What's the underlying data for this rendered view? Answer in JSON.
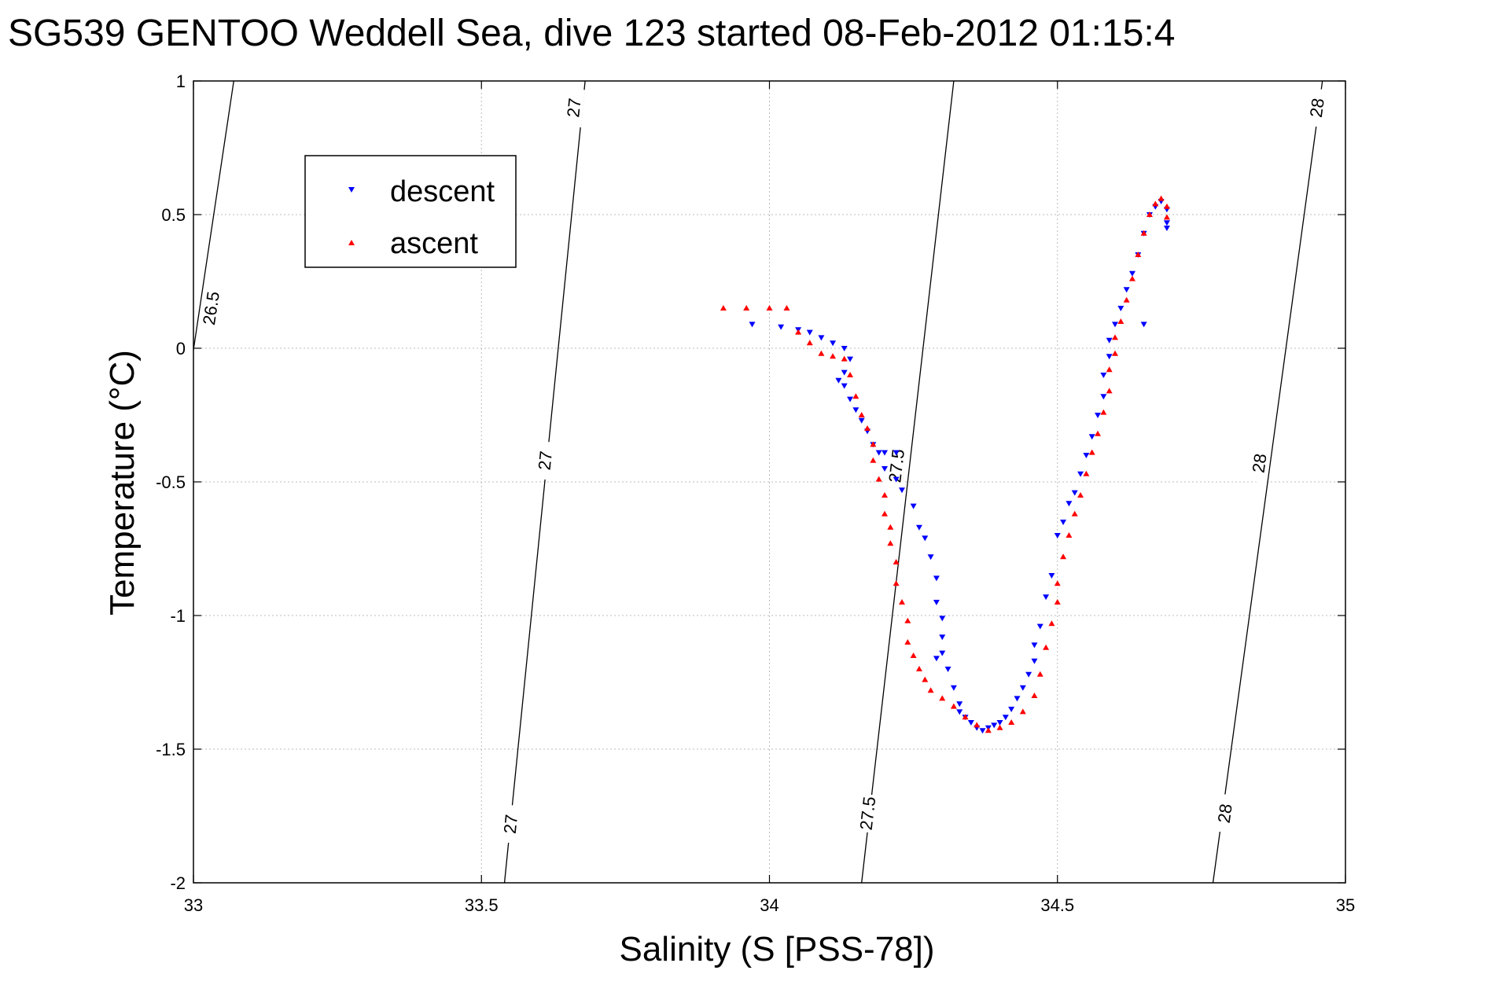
{
  "chart_data": {
    "type": "scatter",
    "title": "SG539 GENTOO Weddell Sea, dive 123 started 08-Feb-2012 01:15:4",
    "xlabel": "Salinity (S [PSS-78])",
    "ylabel": "Temperature (°C)",
    "xlim": [
      33,
      35
    ],
    "ylim": [
      -2,
      1
    ],
    "xticks": [
      33,
      33.5,
      34,
      34.5,
      35
    ],
    "xtick_labels": [
      "33",
      "33.5",
      "34",
      "34.5",
      "35"
    ],
    "yticks": [
      -2,
      -1.5,
      -1,
      -0.5,
      0,
      0.5,
      1
    ],
    "ytick_labels": [
      "-2",
      "-1.5",
      "-1",
      "-0.5",
      "0",
      "0.5",
      "1"
    ],
    "grid": true,
    "legend": {
      "placement": "top-left",
      "entries": [
        "descent",
        "ascent"
      ]
    },
    "colors": {
      "descent": "#0000ff",
      "ascent": "#ff0000",
      "contour": "#000000",
      "grid": "#bbbbbb"
    },
    "series": [
      {
        "name": "descent",
        "marker": "triangle-down",
        "color": "#0000ff",
        "points": [
          [
            33.97,
            0.09
          ],
          [
            34.02,
            0.08
          ],
          [
            34.05,
            0.07
          ],
          [
            34.07,
            0.06
          ],
          [
            34.09,
            0.04
          ],
          [
            34.11,
            0.02
          ],
          [
            34.13,
            0.0
          ],
          [
            34.14,
            -0.04
          ],
          [
            34.13,
            -0.09
          ],
          [
            34.12,
            -0.12
          ],
          [
            34.13,
            -0.14
          ],
          [
            34.14,
            -0.19
          ],
          [
            34.15,
            -0.23
          ],
          [
            34.16,
            -0.27
          ],
          [
            34.17,
            -0.31
          ],
          [
            34.18,
            -0.36
          ],
          [
            34.19,
            -0.39
          ],
          [
            34.2,
            -0.39
          ],
          [
            34.22,
            -0.39
          ],
          [
            34.2,
            -0.45
          ],
          [
            34.22,
            -0.49
          ],
          [
            34.23,
            -0.53
          ],
          [
            34.25,
            -0.59
          ],
          [
            34.26,
            -0.67
          ],
          [
            34.27,
            -0.71
          ],
          [
            34.28,
            -0.78
          ],
          [
            34.29,
            -0.86
          ],
          [
            34.29,
            -0.95
          ],
          [
            34.3,
            -1.01
          ],
          [
            34.3,
            -1.08
          ],
          [
            34.3,
            -1.14
          ],
          [
            34.29,
            -1.16
          ],
          [
            34.31,
            -1.2
          ],
          [
            34.32,
            -1.27
          ],
          [
            34.33,
            -1.33
          ],
          [
            34.33,
            -1.36
          ],
          [
            34.34,
            -1.38
          ],
          [
            34.35,
            -1.4
          ],
          [
            34.36,
            -1.42
          ],
          [
            34.37,
            -1.43
          ],
          [
            34.38,
            -1.42
          ],
          [
            34.39,
            -1.41
          ],
          [
            34.4,
            -1.4
          ],
          [
            34.41,
            -1.38
          ],
          [
            34.42,
            -1.35
          ],
          [
            34.43,
            -1.31
          ],
          [
            34.44,
            -1.27
          ],
          [
            34.45,
            -1.22
          ],
          [
            34.46,
            -1.17
          ],
          [
            34.46,
            -1.11
          ],
          [
            34.47,
            -1.04
          ],
          [
            34.48,
            -0.93
          ],
          [
            34.49,
            -0.85
          ],
          [
            34.5,
            -0.7
          ],
          [
            34.51,
            -0.65
          ],
          [
            34.52,
            -0.58
          ],
          [
            34.53,
            -0.54
          ],
          [
            34.54,
            -0.47
          ],
          [
            34.55,
            -0.4
          ],
          [
            34.56,
            -0.33
          ],
          [
            34.57,
            -0.25
          ],
          [
            34.58,
            -0.18
          ],
          [
            34.58,
            -0.1
          ],
          [
            34.59,
            -0.03
          ],
          [
            34.59,
            0.03
          ],
          [
            34.6,
            0.09
          ],
          [
            34.61,
            0.15
          ],
          [
            34.62,
            0.22
          ],
          [
            34.63,
            0.28
          ],
          [
            34.64,
            0.35
          ],
          [
            34.65,
            0.43
          ],
          [
            34.66,
            0.5
          ],
          [
            34.67,
            0.53
          ],
          [
            34.68,
            0.55
          ],
          [
            34.69,
            0.52
          ],
          [
            34.69,
            0.47
          ],
          [
            34.69,
            0.45
          ],
          [
            34.65,
            0.09
          ]
        ]
      },
      {
        "name": "ascent",
        "marker": "triangle-up",
        "color": "#ff0000",
        "points": [
          [
            33.92,
            0.15
          ],
          [
            33.96,
            0.15
          ],
          [
            34.0,
            0.15
          ],
          [
            34.03,
            0.15
          ],
          [
            34.05,
            0.06
          ],
          [
            34.07,
            0.02
          ],
          [
            34.09,
            -0.02
          ],
          [
            34.11,
            -0.03
          ],
          [
            34.13,
            -0.04
          ],
          [
            34.14,
            -0.1
          ],
          [
            34.15,
            -0.18
          ],
          [
            34.16,
            -0.25
          ],
          [
            34.17,
            -0.3
          ],
          [
            34.18,
            -0.36
          ],
          [
            34.18,
            -0.42
          ],
          [
            34.19,
            -0.49
          ],
          [
            34.2,
            -0.55
          ],
          [
            34.2,
            -0.62
          ],
          [
            34.21,
            -0.67
          ],
          [
            34.21,
            -0.73
          ],
          [
            34.22,
            -0.8
          ],
          [
            34.22,
            -0.88
          ],
          [
            34.23,
            -0.95
          ],
          [
            34.24,
            -1.02
          ],
          [
            34.24,
            -1.1
          ],
          [
            34.25,
            -1.15
          ],
          [
            34.26,
            -1.2
          ],
          [
            34.27,
            -1.24
          ],
          [
            34.28,
            -1.28
          ],
          [
            34.3,
            -1.31
          ],
          [
            34.32,
            -1.34
          ],
          [
            34.34,
            -1.38
          ],
          [
            34.36,
            -1.41
          ],
          [
            34.38,
            -1.43
          ],
          [
            34.4,
            -1.42
          ],
          [
            34.42,
            -1.4
          ],
          [
            34.44,
            -1.36
          ],
          [
            34.46,
            -1.3
          ],
          [
            34.47,
            -1.22
          ],
          [
            34.48,
            -1.12
          ],
          [
            34.49,
            -1.03
          ],
          [
            34.5,
            -0.95
          ],
          [
            34.5,
            -0.88
          ],
          [
            34.51,
            -0.78
          ],
          [
            34.52,
            -0.7
          ],
          [
            34.53,
            -0.62
          ],
          [
            34.54,
            -0.55
          ],
          [
            34.55,
            -0.47
          ],
          [
            34.56,
            -0.39
          ],
          [
            34.57,
            -0.32
          ],
          [
            34.58,
            -0.24
          ],
          [
            34.59,
            -0.16
          ],
          [
            34.59,
            -0.08
          ],
          [
            34.6,
            -0.02
          ],
          [
            34.6,
            0.04
          ],
          [
            34.61,
            0.1
          ],
          [
            34.62,
            0.18
          ],
          [
            34.63,
            0.26
          ],
          [
            34.64,
            0.35
          ],
          [
            34.65,
            0.43
          ],
          [
            34.66,
            0.5
          ],
          [
            34.67,
            0.54
          ],
          [
            34.68,
            0.56
          ],
          [
            34.69,
            0.53
          ],
          [
            34.69,
            0.49
          ]
        ]
      }
    ],
    "contours": [
      {
        "label": "26.5",
        "points": [
          [
            33.07,
            1.0
          ],
          [
            32.99,
            -0.15
          ]
        ],
        "label_positions": [
          [
            33.03,
            0.15
          ]
        ]
      },
      {
        "label": "27",
        "points": [
          [
            33.68,
            1.0
          ],
          [
            33.54,
            -2.0
          ]
        ],
        "label_positions": [
          [
            33.66,
            0.9
          ],
          [
            33.61,
            -0.42
          ],
          [
            33.55,
            -1.78
          ]
        ]
      },
      {
        "label": "27.5",
        "points": [
          [
            34.32,
            1.0
          ],
          [
            34.16,
            -2.0
          ]
        ],
        "label_positions": [
          [
            34.22,
            -0.44
          ],
          [
            34.17,
            -1.74
          ]
        ]
      },
      {
        "label": "28",
        "points": [
          [
            34.96,
            1.0
          ],
          [
            34.77,
            -2.0
          ]
        ],
        "label_positions": [
          [
            34.95,
            0.9
          ],
          [
            34.85,
            -0.43
          ],
          [
            34.79,
            -1.74
          ]
        ]
      }
    ]
  }
}
